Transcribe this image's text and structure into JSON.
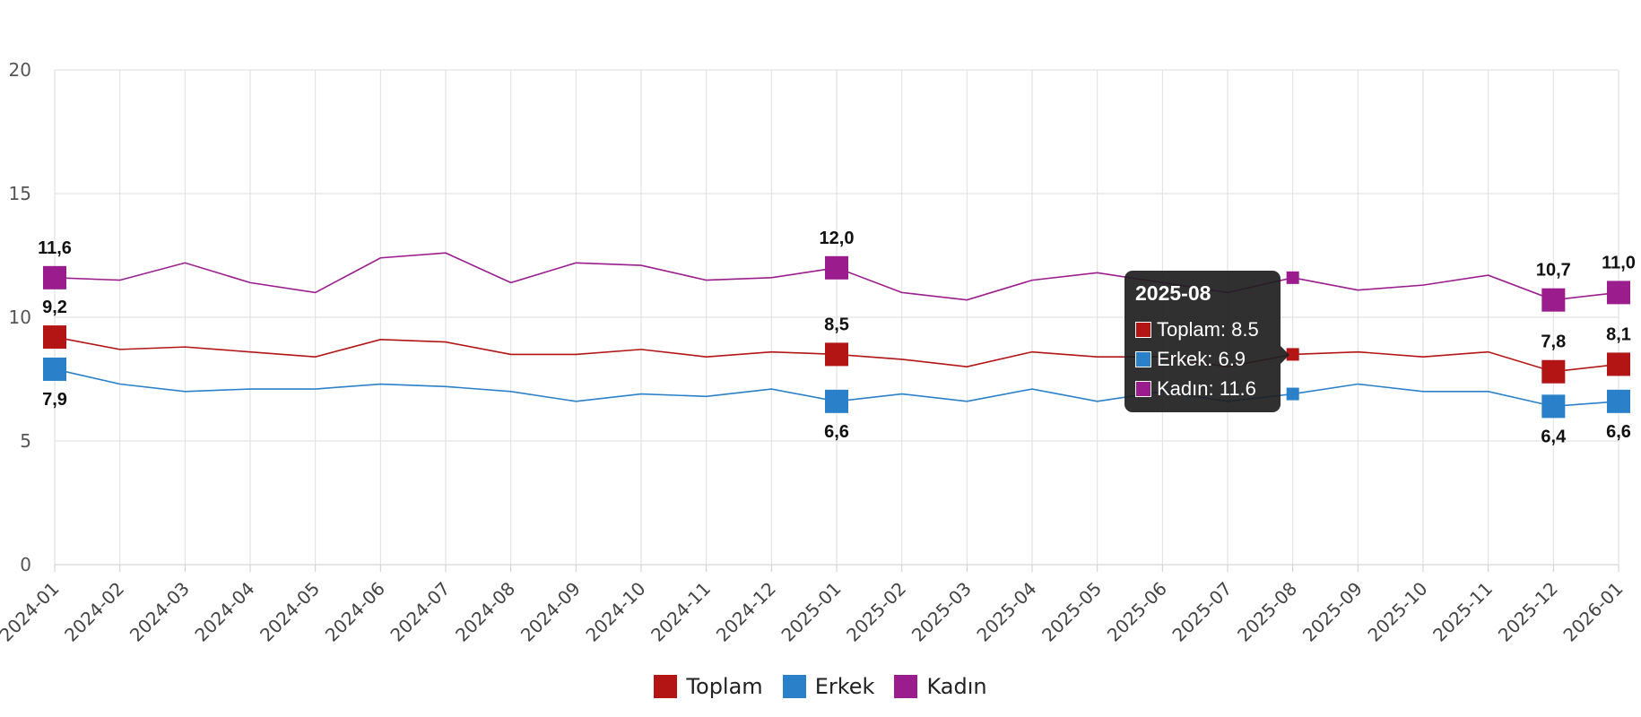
{
  "chart_data": {
    "type": "line",
    "categories": [
      "2024-01",
      "2024-02",
      "2024-03",
      "2024-04",
      "2024-05",
      "2024-06",
      "2024-07",
      "2024-08",
      "2024-09",
      "2024-10",
      "2024-11",
      "2024-12",
      "2025-01",
      "2025-02",
      "2025-03",
      "2025-04",
      "2025-05",
      "2025-06",
      "2025-07",
      "2025-08",
      "2025-09",
      "2025-10",
      "2025-11",
      "2025-12",
      "2026-01"
    ],
    "ylim": [
      0,
      20
    ],
    "yticks": [
      0,
      5,
      10,
      15,
      20
    ],
    "grid": true,
    "legend_position": "bottom-center",
    "series": [
      {
        "name": "Toplam",
        "color": "#b31515",
        "values": [
          9.2,
          8.7,
          8.8,
          8.6,
          8.4,
          9.1,
          9.0,
          8.5,
          8.5,
          8.7,
          8.4,
          8.6,
          8.5,
          8.3,
          8.0,
          8.6,
          8.4,
          8.4,
          8.0,
          8.5,
          8.6,
          8.4,
          8.6,
          7.8,
          8.1
        ],
        "labels": {
          "0": "9,2",
          "12": "8,5",
          "23": "7,8",
          "24": "8,1"
        }
      },
      {
        "name": "Erkek",
        "color": "#2a81c9",
        "values": [
          7.9,
          7.3,
          7.0,
          7.1,
          7.1,
          7.3,
          7.2,
          7.0,
          6.6,
          6.9,
          6.8,
          7.1,
          6.6,
          6.9,
          6.6,
          7.1,
          6.6,
          7.0,
          6.6,
          6.9,
          7.3,
          7.0,
          7.0,
          6.4,
          6.6
        ],
        "labels": {
          "0": "7,9",
          "12": "6,6",
          "23": "6,4",
          "24": "6,6"
        }
      },
      {
        "name": "Kadın",
        "color": "#9b1c8c",
        "values": [
          11.6,
          11.5,
          12.2,
          11.4,
          11.0,
          12.4,
          12.6,
          11.4,
          12.2,
          12.1,
          11.5,
          11.6,
          12.0,
          11.0,
          10.7,
          11.5,
          11.8,
          11.4,
          11.0,
          11.6,
          11.1,
          11.3,
          11.7,
          10.7,
          11.0
        ],
        "labels": {
          "0": "11,6",
          "12": "12,0",
          "23": "10,7",
          "24": "11,0"
        }
      }
    ],
    "highlight_index": 19
  },
  "tooltip": {
    "title": "2025-08",
    "rows": [
      {
        "text": "Toplam: 8.5",
        "color": "#b31515"
      },
      {
        "text": "Erkek: 6.9",
        "color": "#2a81c9"
      },
      {
        "text": "Kadın: 11.6",
        "color": "#9b1c8c"
      }
    ]
  },
  "legend": [
    {
      "label": "Toplam",
      "color": "#b31515"
    },
    {
      "label": "Erkek",
      "color": "#2a81c9"
    },
    {
      "label": "Kadın",
      "color": "#9b1c8c"
    }
  ]
}
